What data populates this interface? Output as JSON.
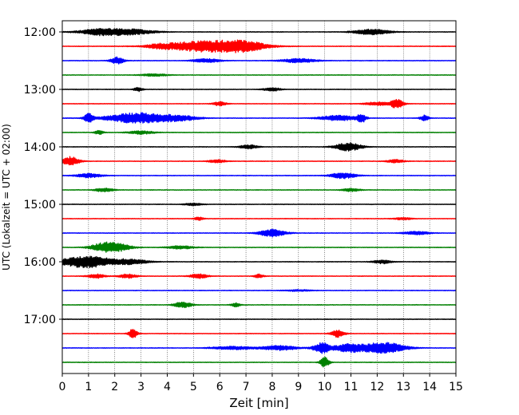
{
  "chart_data": {
    "type": "line",
    "xlabel": "Zeit  [min]",
    "ylabel": "UTC (Lokalzeit = UTC + 02:00)",
    "xlim": [
      0,
      15
    ],
    "x_ticks": [
      0,
      1,
      2,
      3,
      4,
      5,
      6,
      7,
      8,
      9,
      10,
      11,
      12,
      13,
      14,
      15
    ],
    "y_tick_labels": [
      "12:00",
      "13:00",
      "14:00",
      "15:00",
      "16:00",
      "17:00"
    ],
    "trace_interval_min": 15,
    "grid": "vertical dotted lines at each minute",
    "series_colors": [
      "#000000",
      "#ff0000",
      "#0000ff",
      "#008000"
    ],
    "traces": [
      {
        "start": "12:00",
        "color": "#000000",
        "events": [
          [
            1.5,
            5,
            0.8
          ],
          [
            2.7,
            5,
            0.6
          ],
          [
            11.8,
            4,
            0.7
          ]
        ]
      },
      {
        "start": "12:15",
        "color": "#ff0000",
        "events": [
          [
            5.5,
            9,
            1.4
          ],
          [
            7.0,
            5,
            0.9
          ],
          [
            3.7,
            3,
            0.4
          ]
        ]
      },
      {
        "start": "12:30",
        "color": "#0000ff",
        "events": [
          [
            2.1,
            1.5,
            0.9
          ],
          [
            9.0,
            4,
            0.5
          ],
          [
            5.5,
            3,
            0.5
          ]
        ]
      },
      {
        "start": "12:45",
        "color": "#008000",
        "events": [
          [
            3.5,
            3,
            0.3
          ]
        ]
      },
      {
        "start": "13:00",
        "color": "#000000",
        "events": [
          [
            2.9,
            1,
            0.5
          ],
          [
            8.0,
            2,
            0.4
          ]
        ]
      },
      {
        "start": "13:15",
        "color": "#ff0000",
        "events": [
          [
            12.75,
            1.5,
            1.1
          ],
          [
            6.0,
            1.5,
            0.5
          ],
          [
            12.0,
            3,
            0.4
          ]
        ]
      },
      {
        "start": "13:30",
        "color": "#0000ff",
        "events": [
          [
            1.0,
            1,
            1.2
          ],
          [
            2.9,
            7,
            1.3
          ],
          [
            4.5,
            4,
            0.6
          ],
          [
            10.5,
            4,
            0.7
          ],
          [
            11.4,
            1,
            1.1
          ],
          [
            13.8,
            1,
            0.7
          ]
        ]
      },
      {
        "start": "13:45",
        "color": "#008000",
        "events": [
          [
            3.0,
            3,
            0.4
          ],
          [
            1.4,
            1,
            0.5
          ]
        ]
      },
      {
        "start": "14:00",
        "color": "#000000",
        "events": [
          [
            10.9,
            3,
            1.0
          ],
          [
            7.1,
            2,
            0.5
          ]
        ]
      },
      {
        "start": "14:15",
        "color": "#ff0000",
        "events": [
          [
            0.3,
            2,
            1.1
          ],
          [
            5.9,
            2,
            0.4
          ],
          [
            12.7,
            2,
            0.4
          ]
        ]
      },
      {
        "start": "14:30",
        "color": "#0000ff",
        "events": [
          [
            10.7,
            3,
            0.7
          ],
          [
            1.0,
            3,
            0.5
          ]
        ]
      },
      {
        "start": "14:45",
        "color": "#008000",
        "events": [
          [
            1.6,
            2,
            0.5
          ],
          [
            11.0,
            2,
            0.4
          ]
        ]
      },
      {
        "start": "15:00",
        "color": "#000000",
        "events": [
          [
            5.0,
            2,
            0.3
          ]
        ]
      },
      {
        "start": "15:15",
        "color": "#ff0000",
        "events": [
          [
            5.2,
            1,
            0.4
          ],
          [
            13.0,
            2,
            0.3
          ]
        ]
      },
      {
        "start": "15:30",
        "color": "#0000ff",
        "events": [
          [
            8.0,
            3,
            0.9
          ],
          [
            13.5,
            3,
            0.4
          ]
        ]
      },
      {
        "start": "15:45",
        "color": "#008000",
        "events": [
          [
            1.6,
            3,
            1.1
          ],
          [
            2.2,
            3,
            0.7
          ],
          [
            4.5,
            3,
            0.4
          ]
        ]
      },
      {
        "start": "16:00",
        "color": "#000000",
        "events": [
          [
            0.9,
            6,
            1.5
          ],
          [
            2.6,
            4,
            0.6
          ],
          [
            12.2,
            2,
            0.5
          ]
        ]
      },
      {
        "start": "16:15",
        "color": "#ff0000",
        "events": [
          [
            1.3,
            2,
            0.5
          ],
          [
            2.5,
            2,
            0.5
          ],
          [
            5.2,
            2,
            0.6
          ],
          [
            7.5,
            1,
            0.5
          ]
        ]
      },
      {
        "start": "16:30",
        "color": "#0000ff",
        "events": [
          [
            9.0,
            3,
            0.2
          ]
        ]
      },
      {
        "start": "16:45",
        "color": "#008000",
        "events": [
          [
            4.6,
            2,
            0.7
          ],
          [
            6.6,
            1,
            0.5
          ]
        ]
      },
      {
        "start": "17:00",
        "color": "#000000",
        "events": []
      },
      {
        "start": "17:15",
        "color": "#ff0000",
        "events": [
          [
            2.7,
            1,
            1.2
          ],
          [
            10.5,
            1.5,
            0.9
          ]
        ]
      },
      {
        "start": "17:30",
        "color": "#0000ff",
        "events": [
          [
            9.9,
            2,
            1.3
          ],
          [
            10.9,
            3,
            1.0
          ],
          [
            12.2,
            5,
            1.4
          ],
          [
            8.3,
            4,
            0.6
          ],
          [
            6.5,
            5,
            0.4
          ]
        ]
      },
      {
        "start": "17:45",
        "color": "#008000",
        "events": [
          [
            10.0,
            1,
            1.3
          ]
        ]
      }
    ]
  }
}
